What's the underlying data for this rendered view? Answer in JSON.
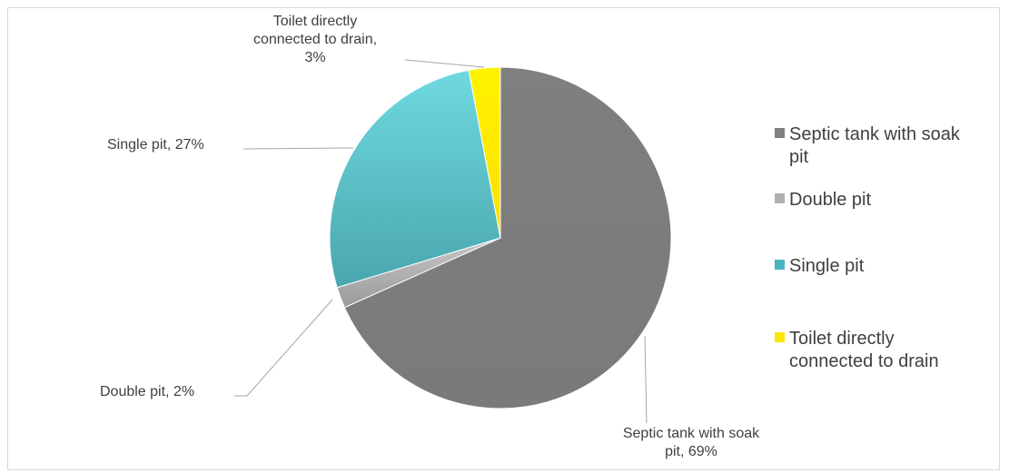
{
  "chart_data": {
    "type": "pie",
    "title": "",
    "categories": [
      "Septic tank with soak pit",
      "Double pit",
      "Single pit",
      "Toilet directly connected to drain"
    ],
    "values": [
      69,
      2,
      27,
      3
    ],
    "colors": [
      "#808080",
      "#b0b0b0",
      "#4bb5bf",
      "#ffe600"
    ],
    "legend_placement": "right",
    "labels": [
      "Septic tank with soak pit, 69%",
      "Double pit, 2%",
      "Single pit, 27%",
      "Toilet directly connected to drain, 3%"
    ]
  }
}
